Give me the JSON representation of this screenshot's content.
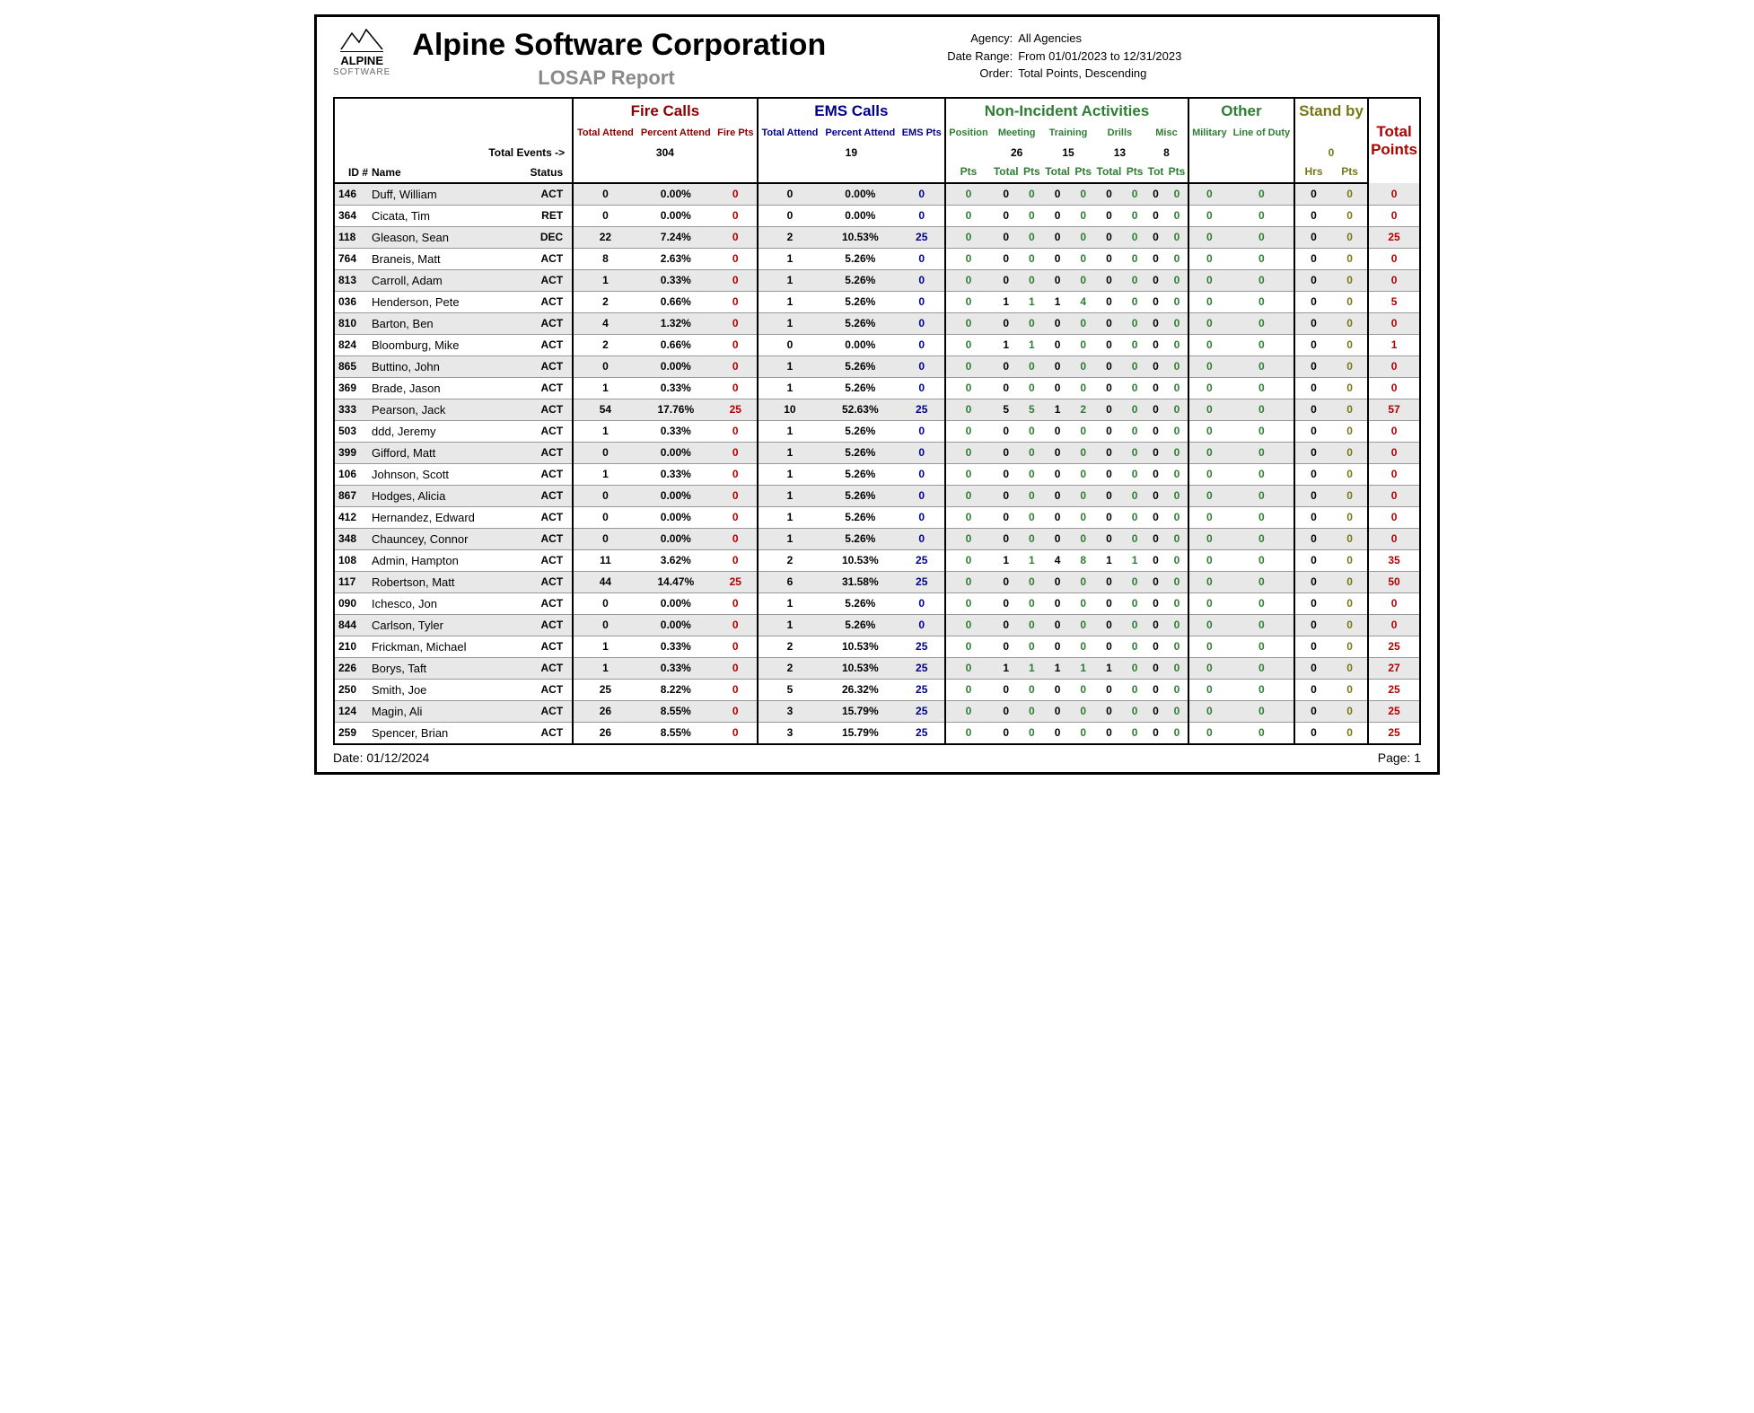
{
  "header": {
    "company": "Alpine Software Corporation",
    "subtitle": "LOSAP Report",
    "logo_top": "ALPINE",
    "logo_bottom": "SOFTWARE",
    "agency_label": "Agency:",
    "agency_value": "All Agencies",
    "range_label": "Date Range:",
    "range_value": "From 01/01/2023 to 12/31/2023",
    "order_label": "Order:",
    "order_value": "Total Points, Descending"
  },
  "groups": {
    "fire": "Fire Calls",
    "ems": "EMS Calls",
    "nia": "Non-Incident Activities",
    "other": "Other",
    "stand": "Stand by",
    "total": "Total Points"
  },
  "subheads": {
    "fire_total": "Total Attend",
    "fire_pct": "Percent Attend",
    "fire_pts": "Fire Pts",
    "ems_total": "Total Attend",
    "ems_pct": "Percent Attend",
    "ems_pts": "EMS Pts",
    "position": "Position",
    "meeting": "Meeting",
    "training": "Training",
    "drills": "Drills",
    "misc": "Misc",
    "military": "Military",
    "lod": "Line of Duty"
  },
  "events": {
    "label": "Total Events ->",
    "fire": "304",
    "ems": "19",
    "meeting": "26",
    "training": "15",
    "drills": "13",
    "misc": "8",
    "stand": "0"
  },
  "col_labels": {
    "id": "ID #",
    "name": "Name",
    "status": "Status",
    "pts": "Pts",
    "total": "Total",
    "totalpts": "Total Pts",
    "tot": "Tot",
    "hrs": "Hrs"
  },
  "colors": {
    "fire": "#8b0000",
    "ems": "#00008b",
    "green": "#2e7d32",
    "olive": "#777718",
    "red": "#b00000"
  },
  "footer": {
    "date_label": "Date: 01/12/2024",
    "page_label": "Page: 1"
  },
  "rows": [
    {
      "id": "146",
      "name": "Duff, William",
      "status": "ACT",
      "f_att": "0",
      "f_pct": "0.00%",
      "f_pts": "0",
      "e_att": "0",
      "e_pct": "0.00%",
      "e_pts": "0",
      "pos": "0",
      "m_tot": "0",
      "m_pts": "0",
      "t_tot": "0",
      "t_pts": "0",
      "d_tot": "0",
      "d_pts": "0",
      "mi_tot": "0",
      "mi_pts": "0",
      "mil": "0",
      "lod": "0",
      "s_hrs": "0",
      "s_pts": "0",
      "total": "0"
    },
    {
      "id": "364",
      "name": "Cicata, Tim",
      "status": "RET",
      "f_att": "0",
      "f_pct": "0.00%",
      "f_pts": "0",
      "e_att": "0",
      "e_pct": "0.00%",
      "e_pts": "0",
      "pos": "0",
      "m_tot": "0",
      "m_pts": "0",
      "t_tot": "0",
      "t_pts": "0",
      "d_tot": "0",
      "d_pts": "0",
      "mi_tot": "0",
      "mi_pts": "0",
      "mil": "0",
      "lod": "0",
      "s_hrs": "0",
      "s_pts": "0",
      "total": "0"
    },
    {
      "id": "118",
      "name": "Gleason, Sean",
      "status": "DEC",
      "f_att": "22",
      "f_pct": "7.24%",
      "f_pts": "0",
      "e_att": "2",
      "e_pct": "10.53%",
      "e_pts": "25",
      "pos": "0",
      "m_tot": "0",
      "m_pts": "0",
      "t_tot": "0",
      "t_pts": "0",
      "d_tot": "0",
      "d_pts": "0",
      "mi_tot": "0",
      "mi_pts": "0",
      "mil": "0",
      "lod": "0",
      "s_hrs": "0",
      "s_pts": "0",
      "total": "25"
    },
    {
      "id": "764",
      "name": "Braneis, Matt",
      "status": "ACT",
      "f_att": "8",
      "f_pct": "2.63%",
      "f_pts": "0",
      "e_att": "1",
      "e_pct": "5.26%",
      "e_pts": "0",
      "pos": "0",
      "m_tot": "0",
      "m_pts": "0",
      "t_tot": "0",
      "t_pts": "0",
      "d_tot": "0",
      "d_pts": "0",
      "mi_tot": "0",
      "mi_pts": "0",
      "mil": "0",
      "lod": "0",
      "s_hrs": "0",
      "s_pts": "0",
      "total": "0"
    },
    {
      "id": "813",
      "name": "Carroll, Adam",
      "status": "ACT",
      "f_att": "1",
      "f_pct": "0.33%",
      "f_pts": "0",
      "e_att": "1",
      "e_pct": "5.26%",
      "e_pts": "0",
      "pos": "0",
      "m_tot": "0",
      "m_pts": "0",
      "t_tot": "0",
      "t_pts": "0",
      "d_tot": "0",
      "d_pts": "0",
      "mi_tot": "0",
      "mi_pts": "0",
      "mil": "0",
      "lod": "0",
      "s_hrs": "0",
      "s_pts": "0",
      "total": "0"
    },
    {
      "id": "036",
      "name": "Henderson, Pete",
      "status": "ACT",
      "f_att": "2",
      "f_pct": "0.66%",
      "f_pts": "0",
      "e_att": "1",
      "e_pct": "5.26%",
      "e_pts": "0",
      "pos": "0",
      "m_tot": "1",
      "m_pts": "1",
      "t_tot": "1",
      "t_pts": "4",
      "d_tot": "0",
      "d_pts": "0",
      "mi_tot": "0",
      "mi_pts": "0",
      "mil": "0",
      "lod": "0",
      "s_hrs": "0",
      "s_pts": "0",
      "total": "5"
    },
    {
      "id": "810",
      "name": "Barton, Ben",
      "status": "ACT",
      "f_att": "4",
      "f_pct": "1.32%",
      "f_pts": "0",
      "e_att": "1",
      "e_pct": "5.26%",
      "e_pts": "0",
      "pos": "0",
      "m_tot": "0",
      "m_pts": "0",
      "t_tot": "0",
      "t_pts": "0",
      "d_tot": "0",
      "d_pts": "0",
      "mi_tot": "0",
      "mi_pts": "0",
      "mil": "0",
      "lod": "0",
      "s_hrs": "0",
      "s_pts": "0",
      "total": "0"
    },
    {
      "id": "824",
      "name": "Bloomburg, Mike",
      "status": "ACT",
      "f_att": "2",
      "f_pct": "0.66%",
      "f_pts": "0",
      "e_att": "0",
      "e_pct": "0.00%",
      "e_pts": "0",
      "pos": "0",
      "m_tot": "1",
      "m_pts": "1",
      "t_tot": "0",
      "t_pts": "0",
      "d_tot": "0",
      "d_pts": "0",
      "mi_tot": "0",
      "mi_pts": "0",
      "mil": "0",
      "lod": "0",
      "s_hrs": "0",
      "s_pts": "0",
      "total": "1"
    },
    {
      "id": "865",
      "name": "Buttino, John",
      "status": "ACT",
      "f_att": "0",
      "f_pct": "0.00%",
      "f_pts": "0",
      "e_att": "1",
      "e_pct": "5.26%",
      "e_pts": "0",
      "pos": "0",
      "m_tot": "0",
      "m_pts": "0",
      "t_tot": "0",
      "t_pts": "0",
      "d_tot": "0",
      "d_pts": "0",
      "mi_tot": "0",
      "mi_pts": "0",
      "mil": "0",
      "lod": "0",
      "s_hrs": "0",
      "s_pts": "0",
      "total": "0"
    },
    {
      "id": "369",
      "name": "Brade, Jason",
      "status": "ACT",
      "f_att": "1",
      "f_pct": "0.33%",
      "f_pts": "0",
      "e_att": "1",
      "e_pct": "5.26%",
      "e_pts": "0",
      "pos": "0",
      "m_tot": "0",
      "m_pts": "0",
      "t_tot": "0",
      "t_pts": "0",
      "d_tot": "0",
      "d_pts": "0",
      "mi_tot": "0",
      "mi_pts": "0",
      "mil": "0",
      "lod": "0",
      "s_hrs": "0",
      "s_pts": "0",
      "total": "0"
    },
    {
      "id": "333",
      "name": "Pearson, Jack",
      "status": "ACT",
      "f_att": "54",
      "f_pct": "17.76%",
      "f_pts": "25",
      "e_att": "10",
      "e_pct": "52.63%",
      "e_pts": "25",
      "pos": "0",
      "m_tot": "5",
      "m_pts": "5",
      "t_tot": "1",
      "t_pts": "2",
      "d_tot": "0",
      "d_pts": "0",
      "mi_tot": "0",
      "mi_pts": "0",
      "mil": "0",
      "lod": "0",
      "s_hrs": "0",
      "s_pts": "0",
      "total": "57"
    },
    {
      "id": "503",
      "name": "ddd, Jeremy",
      "status": "ACT",
      "f_att": "1",
      "f_pct": "0.33%",
      "f_pts": "0",
      "e_att": "1",
      "e_pct": "5.26%",
      "e_pts": "0",
      "pos": "0",
      "m_tot": "0",
      "m_pts": "0",
      "t_tot": "0",
      "t_pts": "0",
      "d_tot": "0",
      "d_pts": "0",
      "mi_tot": "0",
      "mi_pts": "0",
      "mil": "0",
      "lod": "0",
      "s_hrs": "0",
      "s_pts": "0",
      "total": "0"
    },
    {
      "id": "399",
      "name": "Gifford, Matt",
      "status": "ACT",
      "f_att": "0",
      "f_pct": "0.00%",
      "f_pts": "0",
      "e_att": "1",
      "e_pct": "5.26%",
      "e_pts": "0",
      "pos": "0",
      "m_tot": "0",
      "m_pts": "0",
      "t_tot": "0",
      "t_pts": "0",
      "d_tot": "0",
      "d_pts": "0",
      "mi_tot": "0",
      "mi_pts": "0",
      "mil": "0",
      "lod": "0",
      "s_hrs": "0",
      "s_pts": "0",
      "total": "0"
    },
    {
      "id": "106",
      "name": "Johnson, Scott",
      "status": "ACT",
      "f_att": "1",
      "f_pct": "0.33%",
      "f_pts": "0",
      "e_att": "1",
      "e_pct": "5.26%",
      "e_pts": "0",
      "pos": "0",
      "m_tot": "0",
      "m_pts": "0",
      "t_tot": "0",
      "t_pts": "0",
      "d_tot": "0",
      "d_pts": "0",
      "mi_tot": "0",
      "mi_pts": "0",
      "mil": "0",
      "lod": "0",
      "s_hrs": "0",
      "s_pts": "0",
      "total": "0"
    },
    {
      "id": "867",
      "name": "Hodges, Alicia",
      "status": "ACT",
      "f_att": "0",
      "f_pct": "0.00%",
      "f_pts": "0",
      "e_att": "1",
      "e_pct": "5.26%",
      "e_pts": "0",
      "pos": "0",
      "m_tot": "0",
      "m_pts": "0",
      "t_tot": "0",
      "t_pts": "0",
      "d_tot": "0",
      "d_pts": "0",
      "mi_tot": "0",
      "mi_pts": "0",
      "mil": "0",
      "lod": "0",
      "s_hrs": "0",
      "s_pts": "0",
      "total": "0"
    },
    {
      "id": "412",
      "name": "Hernandez, Edward",
      "status": "ACT",
      "f_att": "0",
      "f_pct": "0.00%",
      "f_pts": "0",
      "e_att": "1",
      "e_pct": "5.26%",
      "e_pts": "0",
      "pos": "0",
      "m_tot": "0",
      "m_pts": "0",
      "t_tot": "0",
      "t_pts": "0",
      "d_tot": "0",
      "d_pts": "0",
      "mi_tot": "0",
      "mi_pts": "0",
      "mil": "0",
      "lod": "0",
      "s_hrs": "0",
      "s_pts": "0",
      "total": "0"
    },
    {
      "id": "348",
      "name": "Chauncey, Connor",
      "status": "ACT",
      "f_att": "0",
      "f_pct": "0.00%",
      "f_pts": "0",
      "e_att": "1",
      "e_pct": "5.26%",
      "e_pts": "0",
      "pos": "0",
      "m_tot": "0",
      "m_pts": "0",
      "t_tot": "0",
      "t_pts": "0",
      "d_tot": "0",
      "d_pts": "0",
      "mi_tot": "0",
      "mi_pts": "0",
      "mil": "0",
      "lod": "0",
      "s_hrs": "0",
      "s_pts": "0",
      "total": "0"
    },
    {
      "id": "108",
      "name": "Admin, Hampton",
      "status": "ACT",
      "f_att": "11",
      "f_pct": "3.62%",
      "f_pts": "0",
      "e_att": "2",
      "e_pct": "10.53%",
      "e_pts": "25",
      "pos": "0",
      "m_tot": "1",
      "m_pts": "1",
      "t_tot": "4",
      "t_pts": "8",
      "d_tot": "1",
      "d_pts": "1",
      "mi_tot": "0",
      "mi_pts": "0",
      "mil": "0",
      "lod": "0",
      "s_hrs": "0",
      "s_pts": "0",
      "total": "35"
    },
    {
      "id": "117",
      "name": "Robertson, Matt",
      "status": "ACT",
      "f_att": "44",
      "f_pct": "14.47%",
      "f_pts": "25",
      "e_att": "6",
      "e_pct": "31.58%",
      "e_pts": "25",
      "pos": "0",
      "m_tot": "0",
      "m_pts": "0",
      "t_tot": "0",
      "t_pts": "0",
      "d_tot": "0",
      "d_pts": "0",
      "mi_tot": "0",
      "mi_pts": "0",
      "mil": "0",
      "lod": "0",
      "s_hrs": "0",
      "s_pts": "0",
      "total": "50"
    },
    {
      "id": "090",
      "name": "Ichesco, Jon",
      "status": "ACT",
      "f_att": "0",
      "f_pct": "0.00%",
      "f_pts": "0",
      "e_att": "1",
      "e_pct": "5.26%",
      "e_pts": "0",
      "pos": "0",
      "m_tot": "0",
      "m_pts": "0",
      "t_tot": "0",
      "t_pts": "0",
      "d_tot": "0",
      "d_pts": "0",
      "mi_tot": "0",
      "mi_pts": "0",
      "mil": "0",
      "lod": "0",
      "s_hrs": "0",
      "s_pts": "0",
      "total": "0"
    },
    {
      "id": "844",
      "name": "Carlson, Tyler",
      "status": "ACT",
      "f_att": "0",
      "f_pct": "0.00%",
      "f_pts": "0",
      "e_att": "1",
      "e_pct": "5.26%",
      "e_pts": "0",
      "pos": "0",
      "m_tot": "0",
      "m_pts": "0",
      "t_tot": "0",
      "t_pts": "0",
      "d_tot": "0",
      "d_pts": "0",
      "mi_tot": "0",
      "mi_pts": "0",
      "mil": "0",
      "lod": "0",
      "s_hrs": "0",
      "s_pts": "0",
      "total": "0"
    },
    {
      "id": "210",
      "name": "Frickman, Michael",
      "status": "ACT",
      "f_att": "1",
      "f_pct": "0.33%",
      "f_pts": "0",
      "e_att": "2",
      "e_pct": "10.53%",
      "e_pts": "25",
      "pos": "0",
      "m_tot": "0",
      "m_pts": "0",
      "t_tot": "0",
      "t_pts": "0",
      "d_tot": "0",
      "d_pts": "0",
      "mi_tot": "0",
      "mi_pts": "0",
      "mil": "0",
      "lod": "0",
      "s_hrs": "0",
      "s_pts": "0",
      "total": "25"
    },
    {
      "id": "226",
      "name": "Borys, Taft",
      "status": "ACT",
      "f_att": "1",
      "f_pct": "0.33%",
      "f_pts": "0",
      "e_att": "2",
      "e_pct": "10.53%",
      "e_pts": "25",
      "pos": "0",
      "m_tot": "1",
      "m_pts": "1",
      "t_tot": "1",
      "t_pts": "1",
      "d_tot": "1",
      "d_pts": "0",
      "mi_tot": "0",
      "mi_pts": "0",
      "mil": "0",
      "lod": "0",
      "s_hrs": "0",
      "s_pts": "0",
      "total": "27"
    },
    {
      "id": "250",
      "name": "Smith, Joe",
      "status": "ACT",
      "f_att": "25",
      "f_pct": "8.22%",
      "f_pts": "0",
      "e_att": "5",
      "e_pct": "26.32%",
      "e_pts": "25",
      "pos": "0",
      "m_tot": "0",
      "m_pts": "0",
      "t_tot": "0",
      "t_pts": "0",
      "d_tot": "0",
      "d_pts": "0",
      "mi_tot": "0",
      "mi_pts": "0",
      "mil": "0",
      "lod": "0",
      "s_hrs": "0",
      "s_pts": "0",
      "total": "25"
    },
    {
      "id": "124",
      "name": "Magin, Ali",
      "status": "ACT",
      "f_att": "26",
      "f_pct": "8.55%",
      "f_pts": "0",
      "e_att": "3",
      "e_pct": "15.79%",
      "e_pts": "25",
      "pos": "0",
      "m_tot": "0",
      "m_pts": "0",
      "t_tot": "0",
      "t_pts": "0",
      "d_tot": "0",
      "d_pts": "0",
      "mi_tot": "0",
      "mi_pts": "0",
      "mil": "0",
      "lod": "0",
      "s_hrs": "0",
      "s_pts": "0",
      "total": "25"
    },
    {
      "id": "259",
      "name": "Spencer, Brian",
      "status": "ACT",
      "f_att": "26",
      "f_pct": "8.55%",
      "f_pts": "0",
      "e_att": "3",
      "e_pct": "15.79%",
      "e_pts": "25",
      "pos": "0",
      "m_tot": "0",
      "m_pts": "0",
      "t_tot": "0",
      "t_pts": "0",
      "d_tot": "0",
      "d_pts": "0",
      "mi_tot": "0",
      "mi_pts": "0",
      "mil": "0",
      "lod": "0",
      "s_hrs": "0",
      "s_pts": "0",
      "total": "25"
    }
  ]
}
